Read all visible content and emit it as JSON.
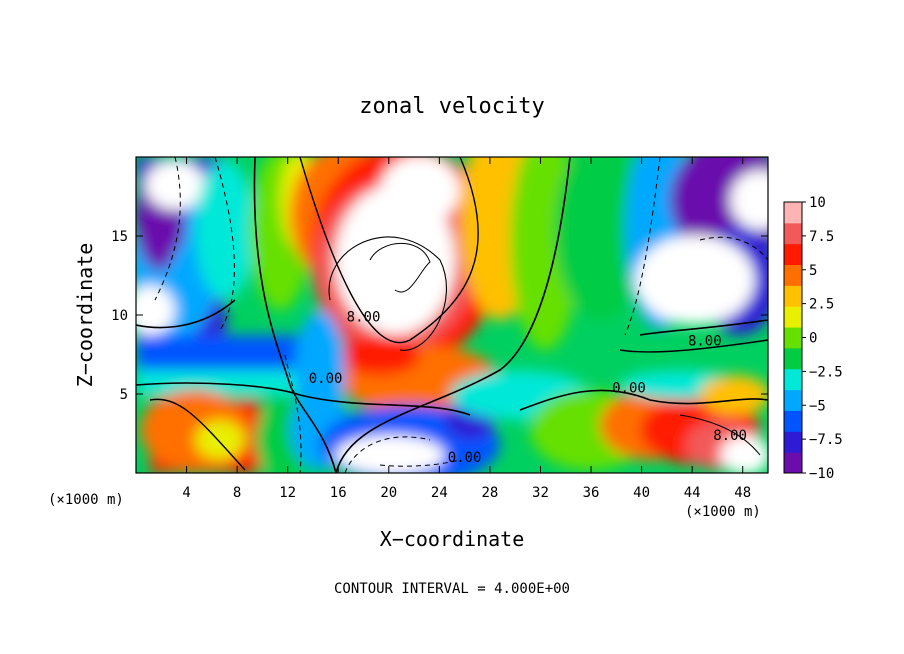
{
  "chart_data": {
    "type": "heatmap",
    "title": "zonal velocity",
    "xlabel": "X−coordinate",
    "ylabel": "Z−coordinate",
    "x_unit_left": "(×1000 m)",
    "x_unit_right": "(×1000 m)",
    "xlim": [
      0,
      50
    ],
    "ylim": [
      0,
      20
    ],
    "x_ticks": [
      4,
      8,
      12,
      16,
      20,
      24,
      28,
      32,
      36,
      40,
      44,
      48
    ],
    "y_ticks": [
      5,
      10,
      15
    ],
    "x_tick_labels": [
      "4",
      "8",
      "12",
      "16",
      "20",
      "24",
      "28",
      "32",
      "36",
      "40",
      "44",
      "48"
    ],
    "y_tick_labels": [
      "5",
      "10",
      "15"
    ],
    "colorbar": {
      "min": -10,
      "max": 10,
      "ticks": [
        10,
        7.5,
        5,
        2.5,
        0,
        -2.5,
        -5,
        -7.5,
        -10
      ],
      "tick_labels": [
        "10",
        "7.5",
        "5",
        "2.5",
        "0",
        "−2.5",
        "−5",
        "−7.5",
        "−10"
      ],
      "colors_low_to_high": [
        "#6a0dad",
        "#2f1bd6",
        "#0055ff",
        "#00a8ff",
        "#00e8d8",
        "#00cc44",
        "#66e000",
        "#e8f000",
        "#ffc000",
        "#ff7000",
        "#ff1a00",
        "#f25a5a",
        "#ffb4b4"
      ]
    },
    "contour_labels": [
      {
        "text": "8.00",
        "x": 18,
        "y": 9.9
      },
      {
        "text": "0.00",
        "x": 15,
        "y": 6.0
      },
      {
        "text": "0.00",
        "x": 26,
        "y": 1.0
      },
      {
        "text": "0.00",
        "x": 39,
        "y": 5.4
      },
      {
        "text": "8.00",
        "x": 45,
        "y": 8.4
      },
      {
        "text": "8.00",
        "x": 47,
        "y": 2.4
      }
    ],
    "contour_interval_text": "CONTOUR INTERVAL = 4.000E+00"
  }
}
